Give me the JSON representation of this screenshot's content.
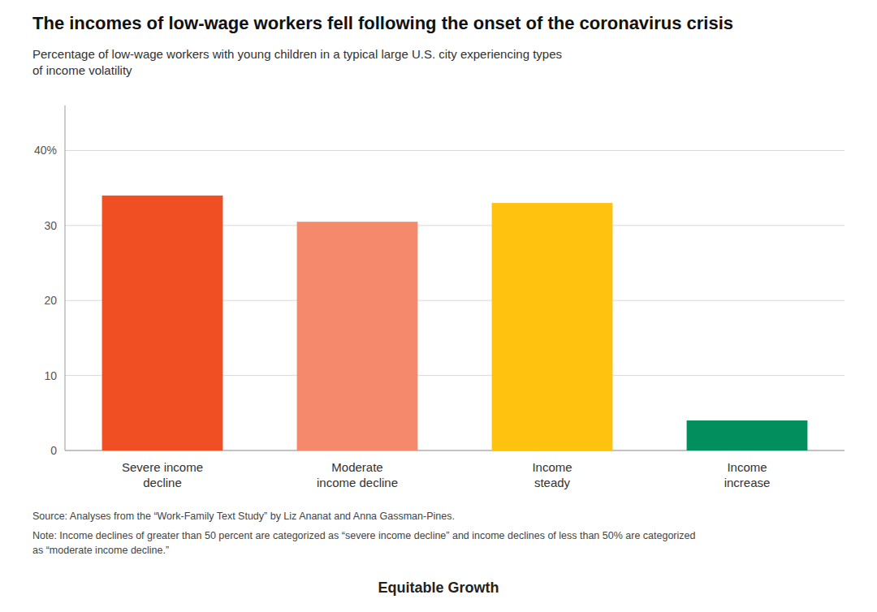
{
  "chart_data": {
    "type": "bar",
    "title": "The incomes of low-wage workers fell following the onset of the coronavirus crisis",
    "subtitle": "Percentage of low-wage workers with young children in a typical large U.S. city experiencing types\nof income volatility",
    "categories": [
      "Severe income\ndecline",
      "Moderate\nincome decline",
      "Income\nsteady",
      "Income\nincrease"
    ],
    "values": [
      34,
      30.5,
      33,
      4
    ],
    "colors": [
      "#F04E23",
      "#F4896B",
      "#FFC20E",
      "#008F5D"
    ],
    "ylim": [
      0,
      46
    ],
    "yticks": [
      0,
      10,
      20,
      30,
      {
        "value": 40,
        "label": "40%"
      }
    ],
    "grid": true,
    "annotations": [
      "Source: Analyses from the “Work-Family Text Study” by Liz Ananat and Anna Gassman-Pines.",
      "Note: Income declines of greater than 50 percent are categorized as “severe income decline” and income declines of less than 50% are categorized\nas “moderate income decline.”",
      "Equitable Growth"
    ]
  }
}
